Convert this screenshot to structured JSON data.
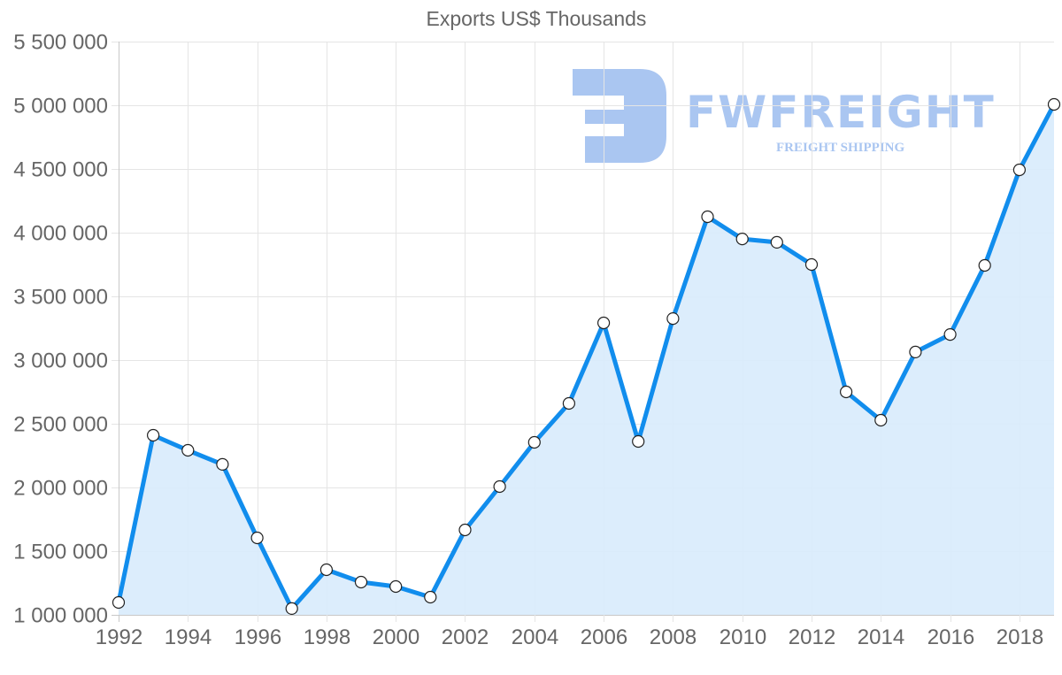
{
  "chart_data": {
    "type": "area",
    "title": "Exports US$ Thousands",
    "xlabel": "",
    "ylabel": "",
    "x": [
      1992,
      1993,
      1994,
      1995,
      1996,
      1997,
      1998,
      1999,
      2000,
      2001,
      2002,
      2003,
      2004,
      2005,
      2006,
      2007,
      2008,
      2009,
      2010,
      2011,
      2012,
      2013,
      2014,
      2015,
      2016,
      2017,
      2018,
      2019
    ],
    "series": [
      {
        "name": "Exports US$ Thousands",
        "values": [
          1097000,
          2410000,
          2292000,
          2181000,
          1604000,
          1049000,
          1354000,
          1257000,
          1222000,
          1139000,
          1667000,
          2007000,
          2354000,
          2660000,
          3292000,
          2361000,
          3326000,
          4125000,
          3951000,
          3924000,
          3750000,
          2750000,
          2528000,
          3063000,
          3201000,
          3743000,
          4493000,
          5007000
        ],
        "line_color": "#118ded",
        "fill_color": "#d8ebfc",
        "point_fill": "#ffffff",
        "point_stroke": "#222222"
      }
    ],
    "ylim": [
      1000000,
      5500000
    ],
    "y_ticks": [
      "5 500 000",
      "5 000 000",
      "4 500 000",
      "4 000 000",
      "3 500 000",
      "3 000 000",
      "2 500 000",
      "2 000 000",
      "1 500 000",
      "1 000 000"
    ],
    "x_ticks": [
      "1992",
      "1994",
      "1996",
      "1998",
      "2000",
      "2002",
      "2004",
      "2006",
      "2008",
      "2010",
      "2012",
      "2014",
      "2016",
      "2018"
    ],
    "grid": true,
    "legend": null
  },
  "watermark": {
    "logo_letter": "F",
    "brand": "FWFREIGHT",
    "tagline": "FREIGHT SHIPPING",
    "color": "#aac6f1"
  }
}
